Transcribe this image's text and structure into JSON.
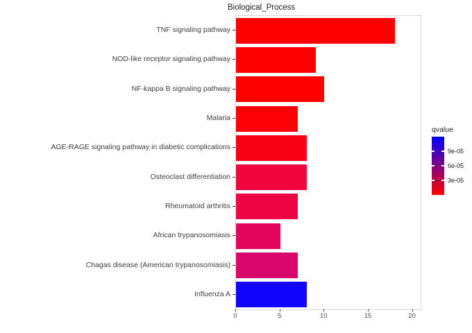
{
  "chart_data": {
    "type": "bar",
    "orientation": "horizontal",
    "title": "Biological_Process",
    "xlabel": "",
    "ylabel": "",
    "categories": [
      "TNF signaling pathway",
      "NOD-like receptor signaling pathway",
      "NF-kappa B signaling pathway",
      "Malaria",
      "AGE-RAGE signaling pathway in diabetic complications",
      "Osteoclast differentiation",
      "Rheumatoid arthritis",
      "African trypanosomiasis",
      "Chagas disease (American trypanosomiasis)",
      "Influenza A"
    ],
    "values": [
      18,
      9,
      10,
      7,
      8,
      8,
      7,
      5,
      7,
      8
    ],
    "bar_colors": [
      "#ff0000",
      "#ff0000",
      "#ff0000",
      "#fe0008",
      "#f90218",
      "#f1053e",
      "#ee0546",
      "#e4055c",
      "#d9066e",
      "#1203fa"
    ],
    "xlim": [
      0,
      20.9
    ],
    "x_ticks": [
      0,
      5,
      10,
      15,
      20
    ],
    "grid": false,
    "panel_background": "#ffffff",
    "panel_border_color": "#d4d4d4",
    "legend": {
      "type": "colorbar",
      "position": "right",
      "title": "qvalue",
      "tick_labels": [
        "9e-05",
        "6e-05",
        "3e-05"
      ],
      "tick_values": [
        9e-05,
        6e-05,
        3e-05
      ],
      "domain": [
        0,
        0.00012
      ],
      "gradient_low_color": "#ff0000",
      "gradient_high_color": "#0000ff"
    }
  }
}
